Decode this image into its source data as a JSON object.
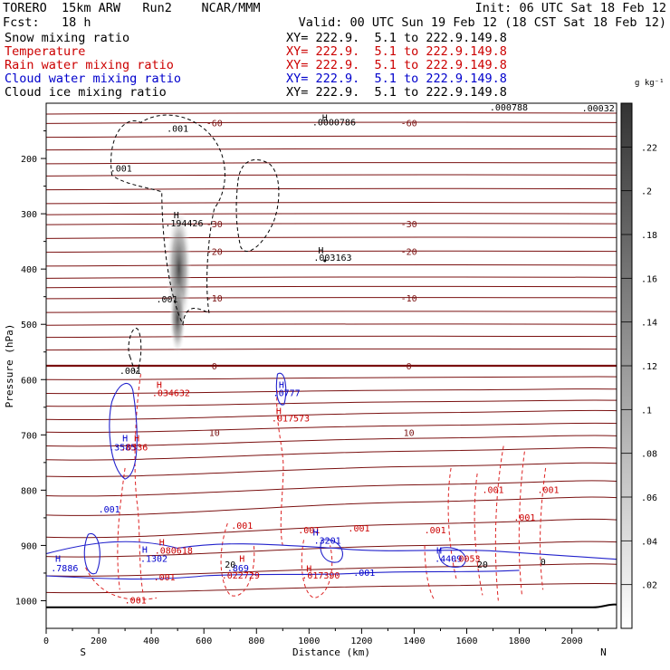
{
  "header": {
    "title": "TORERO  15km ARW   Run2    NCAR/MMM",
    "init": "Init: 06 UTC Sat 18 Feb 12",
    "fcst": "Fcst:   18 h",
    "valid": "Valid: 00 UTC Sun 19 Feb 12 (18 CST Sat 18 Feb 12)",
    "fields": [
      {
        "name": "Snow mixing ratio",
        "xy": "XY= 222.9.  5.1 to 222.9.149.8",
        "color": "#000000"
      },
      {
        "name": "Temperature",
        "xy": "XY= 222.9.  5.1 to 222.9.149.8",
        "color": "#cc0000"
      },
      {
        "name": "Rain water mixing ratio",
        "xy": "XY= 222.9.  5.1 to 222.9.149.8",
        "color": "#cc0000"
      },
      {
        "name": "Cloud water mixing ratio",
        "xy": "XY= 222.9.  5.1 to 222.9.149.8",
        "color": "#0000cc"
      },
      {
        "name": "Cloud ice mixing ratio",
        "xy": "XY= 222.9.  5.1 to 222.9.149.8",
        "color": "#000000"
      }
    ]
  },
  "chart_data": {
    "type": "contour",
    "xlabel": "Distance (km)",
    "ylabel": "Pressure (hPa)",
    "xlim": [
      0,
      2170
    ],
    "ylim": [
      1050,
      100
    ],
    "x_ticks": [
      0,
      200,
      400,
      600,
      800,
      1000,
      1200,
      1400,
      1600,
      1800,
      2000
    ],
    "y_ticks": [
      200,
      300,
      400,
      500,
      600,
      700,
      800,
      900,
      1000
    ],
    "x_end_labels": {
      "left": "S",
      "right": "N"
    },
    "colorbar": {
      "unit": "g kg⁻¹",
      "ticks": [
        ".22",
        ".2",
        ".18",
        ".16",
        ".14",
        ".12",
        ".1",
        ".08",
        ".06",
        ".04",
        ".02"
      ],
      "tick_values": [
        0.22,
        0.2,
        0.18,
        0.16,
        0.14,
        0.12,
        0.1,
        0.08,
        0.06,
        0.04,
        0.02
      ],
      "range": [
        0,
        0.24
      ]
    },
    "temperature_contours": [
      {
        "label": "-60",
        "p": 135
      },
      {
        "label": "-30",
        "p": 318
      },
      {
        "label": "-20",
        "p": 368
      },
      {
        "label": "-10",
        "p": 452
      },
      {
        "label": "0",
        "p": 575
      },
      {
        "label": "10",
        "p": 695
      }
    ],
    "annotations": [
      {
        "text": ".001",
        "x": 500,
        "p": 152,
        "color": "#000000"
      },
      {
        "text": ".001",
        "x": 285,
        "p": 224,
        "color": "#000000"
      },
      {
        "text": "H",
        "x": 495,
        "p": 308,
        "color": "#000000"
      },
      {
        "text": ".194426",
        "x": 525,
        "p": 323,
        "color": "#000000"
      },
      {
        "text": "H",
        "x": 1045,
        "p": 372,
        "color": "#000000"
      },
      {
        "text": ".003163",
        "x": 1090,
        "p": 385,
        "color": "#000000"
      },
      {
        "text": ".001",
        "x": 460,
        "p": 460,
        "color": "#000000"
      },
      {
        "text": ".001",
        "x": 320,
        "p": 590,
        "color": "#000000"
      },
      {
        "text": "H",
        "x": 430,
        "p": 615,
        "color": "#cc0000"
      },
      {
        "text": ".034632",
        "x": 475,
        "p": 630,
        "color": "#cc0000"
      },
      {
        "text": "H",
        "x": 895,
        "p": 615,
        "color": "#0000cc"
      },
      {
        "text": ".0777",
        "x": 915,
        "p": 630,
        "color": "#0000cc"
      },
      {
        "text": "H",
        "x": 885,
        "p": 663,
        "color": "#cc0000"
      },
      {
        "text": ".017573",
        "x": 930,
        "p": 676,
        "color": "#cc0000"
      },
      {
        "text": "H",
        "x": 300,
        "p": 712,
        "color": "#0000cc"
      },
      {
        "text": "H",
        "x": 345,
        "p": 712,
        "color": "#cc0000"
      },
      {
        "text": ".3585",
        "x": 290,
        "p": 728,
        "color": "#0000cc"
      },
      {
        "text": ".0336",
        "x": 335,
        "p": 728,
        "color": "#cc0000"
      },
      {
        "text": ".001",
        "x": 240,
        "p": 840,
        "color": "#0000cc"
      },
      {
        "text": ".001",
        "x": 745,
        "p": 870,
        "color": "#cc0000"
      },
      {
        "text": ".001",
        "x": 1000,
        "p": 878,
        "color": "#cc0000"
      },
      {
        "text": ".001",
        "x": 1190,
        "p": 875,
        "color": "#cc0000"
      },
      {
        "text": ".001",
        "x": 1480,
        "p": 878,
        "color": "#cc0000"
      },
      {
        "text": ".001",
        "x": 1700,
        "p": 805,
        "color": "#cc0000"
      },
      {
        "text": ".001",
        "x": 1910,
        "p": 805,
        "color": "#cc0000"
      },
      {
        "text": ".001",
        "x": 1820,
        "p": 855,
        "color": "#cc0000"
      },
      {
        "text": "H",
        "x": 1025,
        "p": 882,
        "color": "#0000cc"
      },
      {
        "text": ".3201",
        "x": 1070,
        "p": 897,
        "color": "#0000cc"
      },
      {
        "text": "H",
        "x": 440,
        "p": 900,
        "color": "#cc0000"
      },
      {
        "text": ".080618",
        "x": 485,
        "p": 915,
        "color": "#cc0000"
      },
      {
        "text": "H",
        "x": 375,
        "p": 913,
        "color": "#0000cc"
      },
      {
        "text": ".1302",
        "x": 410,
        "p": 930,
        "color": "#0000cc"
      },
      {
        "text": "H",
        "x": 45,
        "p": 930,
        "color": "#0000cc"
      },
      {
        "text": ".7886",
        "x": 70,
        "p": 947,
        "color": "#0000cc"
      },
      {
        "text": "H",
        "x": 745,
        "p": 930,
        "color": "#cc0000"
      },
      {
        "text": ".869",
        "x": 730,
        "p": 947,
        "color": "#0000cc"
      },
      {
        "text": ".022729",
        "x": 740,
        "p": 960,
        "color": "#cc0000"
      },
      {
        "text": "H",
        "x": 1000,
        "p": 948,
        "color": "#cc0000"
      },
      {
        "text": ".017390",
        "x": 1045,
        "p": 960,
        "color": "#cc0000"
      },
      {
        "text": ".001",
        "x": 450,
        "p": 963,
        "color": "#cc0000"
      },
      {
        "text": ".001",
        "x": 1210,
        "p": 955,
        "color": "#0000cc"
      },
      {
        "text": "H",
        "x": 1495,
        "p": 915,
        "color": "#0000cc"
      },
      {
        "text": ".4409",
        "x": 1530,
        "p": 930,
        "color": "#0000cc"
      },
      {
        "text": ".0053",
        "x": 1600,
        "p": 930,
        "color": "#cc0000"
      },
      {
        "text": ".001",
        "x": 340,
        "p": 1005,
        "color": "#cc0000"
      },
      {
        "text": "20",
        "x": 1660,
        "p": 940,
        "color": "#000000"
      },
      {
        "text": "20",
        "x": 700,
        "p": 940,
        "color": "#000000"
      },
      {
        "text": "0",
        "x": 1890,
        "p": 935,
        "color": "#000000"
      },
      {
        "text": "H",
        "x": 1060,
        "p": 132,
        "color": "#000000"
      },
      {
        "text": ".0000786",
        "x": 1095,
        "p": 140,
        "color": "#000000"
      },
      {
        "text": ".000788",
        "x": 1760,
        "p": 113,
        "color": "#000000"
      },
      {
        "text": ".00032",
        "x": 2100,
        "p": 115,
        "color": "#000000"
      }
    ]
  }
}
